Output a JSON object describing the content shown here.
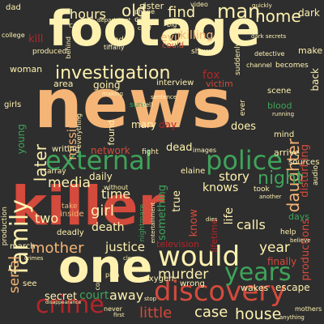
{
  "colors": {
    "background": "#2e2e2e",
    "cream": "#fff2b0",
    "peach": "#f5b577",
    "orange": "#f08a4b",
    "red": "#d44a3c",
    "dark_red": "#b2262a",
    "green": "#3fa35a",
    "light_green": "#8fd28a"
  },
  "words": [
    {
      "text": "news",
      "color": "peach",
      "vertical": false
    },
    {
      "text": "footage",
      "color": "cream",
      "vertical": false
    },
    {
      "text": "killer",
      "color": "red",
      "vertical": false
    },
    {
      "text": "one",
      "color": "cream",
      "vertical": false
    },
    {
      "text": "discovery",
      "color": "red",
      "vertical": false
    },
    {
      "text": "external",
      "color": "green",
      "vertical": false
    },
    {
      "text": "police",
      "color": "green",
      "vertical": false
    },
    {
      "text": "would",
      "color": "cream",
      "vertical": false
    },
    {
      "text": "years",
      "color": "green",
      "vertical": false
    },
    {
      "text": "crime",
      "color": "dark_red",
      "vertical": false
    },
    {
      "text": "investigation",
      "color": "cream",
      "vertical": false
    },
    {
      "text": "family",
      "color": "cream",
      "vertical": true
    },
    {
      "text": "man",
      "color": "cream",
      "vertical": false
    },
    {
      "text": "home",
      "color": "cream",
      "vertical": false
    },
    {
      "text": "old",
      "color": "cream",
      "vertical": false
    },
    {
      "text": "hours",
      "color": "cream",
      "vertical": false
    },
    {
      "text": "find",
      "color": "cream",
      "vertical": false
    },
    {
      "text": "daughter",
      "color": "peach",
      "vertical": true
    },
    {
      "text": "night",
      "color": "green",
      "vertical": false
    },
    {
      "text": "later",
      "color": "cream",
      "vertical": true
    },
    {
      "text": "house",
      "color": "cream",
      "vertical": false
    },
    {
      "text": "case",
      "color": "cream",
      "vertical": false
    },
    {
      "text": "little",
      "color": "red",
      "vertical": false
    },
    {
      "text": "mother",
      "color": "peach",
      "vertical": false
    },
    {
      "text": "murder",
      "color": "cream",
      "vertical": false
    },
    {
      "text": "media",
      "color": "cream",
      "vertical": false
    },
    {
      "text": "time",
      "color": "cream",
      "vertical": false
    },
    {
      "text": "girl",
      "color": "cream",
      "vertical": false
    },
    {
      "text": "year",
      "color": "cream",
      "vertical": false
    },
    {
      "text": "story",
      "color": "cream",
      "vertical": false
    },
    {
      "text": "knows",
      "color": "cream",
      "vertical": false
    },
    {
      "text": "two",
      "color": "cream",
      "vertical": false
    },
    {
      "text": "serial",
      "color": "peach",
      "vertical": true
    },
    {
      "text": "justice",
      "color": "cream",
      "vertical": false
    },
    {
      "text": "away",
      "color": "cream",
      "vertical": false
    },
    {
      "text": "death",
      "color": "cream",
      "vertical": false
    },
    {
      "text": "calls",
      "color": "cream",
      "vertical": false
    },
    {
      "text": "court",
      "color": "green",
      "vertical": false
    },
    {
      "text": "secret",
      "color": "cream",
      "vertical": false
    },
    {
      "text": "fox",
      "color": "dark_red",
      "vertical": false
    },
    {
      "text": "evil",
      "color": "peach",
      "vertical": false
    },
    {
      "text": "killing",
      "color": "peach",
      "vertical": false
    },
    {
      "text": "missing",
      "color": "peach",
      "vertical": true
    },
    {
      "text": "mary",
      "color": "cream",
      "vertical": false
    },
    {
      "text": "day",
      "color": "dark_red",
      "vertical": false
    },
    {
      "text": "does",
      "color": "cream",
      "vertical": false
    },
    {
      "text": "dead",
      "color": "cream",
      "vertical": false
    },
    {
      "text": "network",
      "color": "red",
      "vertical": false
    },
    {
      "text": "daily",
      "color": "cream",
      "vertical": false
    },
    {
      "text": "young",
      "color": "green",
      "vertical": true
    },
    {
      "text": "true",
      "color": "cream",
      "vertical": true
    },
    {
      "text": "something",
      "color": "green",
      "vertical": true
    },
    {
      "text": "know",
      "color": "red",
      "vertical": true
    },
    {
      "text": "life",
      "color": "cream",
      "vertical": true
    },
    {
      "text": "finally",
      "color": "red",
      "vertical": false
    },
    {
      "text": "wakes",
      "color": "cream",
      "vertical": false
    },
    {
      "text": "escape",
      "color": "cream",
      "vertical": false
    },
    {
      "text": "productions",
      "color": "red",
      "vertical": true
    },
    {
      "text": "disturbing",
      "color": "red",
      "vertical": true
    },
    {
      "text": "interview",
      "color": "cream",
      "vertical": false
    },
    {
      "text": "victim",
      "color": "red",
      "vertical": false
    },
    {
      "text": "going",
      "color": "cream",
      "vertical": false
    },
    {
      "text": "area",
      "color": "cream",
      "vertical": false
    },
    {
      "text": "back",
      "color": "cream",
      "vertical": true
    },
    {
      "text": "oxygen",
      "color": "cream",
      "vertical": false
    },
    {
      "text": "wrong",
      "color": "cream",
      "vertical": false
    },
    {
      "text": "deadly",
      "color": "cream",
      "vertical": false
    },
    {
      "text": "television",
      "color": "dark_red",
      "vertical": false
    },
    {
      "text": "dark",
      "color": "cream",
      "vertical": false
    },
    {
      "text": "sister",
      "color": "cream",
      "vertical": false
    },
    {
      "text": "found",
      "color": "cream",
      "vertical": true
    },
    {
      "text": "arrive",
      "color": "cream",
      "vertical": false
    },
    {
      "text": "blood",
      "color": "green",
      "vertical": false
    },
    {
      "text": "elaine",
      "color": "cream",
      "vertical": false
    },
    {
      "text": "make",
      "color": "cream",
      "vertical": false
    },
    {
      "text": "writing",
      "color": "cream",
      "vertical": false
    },
    {
      "text": "fight",
      "color": "cream",
      "vertical": false
    },
    {
      "text": "took",
      "color": "cream",
      "vertical": false
    },
    {
      "text": "inside",
      "color": "peach",
      "vertical": false
    },
    {
      "text": "take",
      "color": "peach",
      "vertical": false
    },
    {
      "text": "scene",
      "color": "cream",
      "vertical": false
    },
    {
      "text": "kill",
      "color": "dark_red",
      "vertical": false
    },
    {
      "text": "woman",
      "color": "cream",
      "vertical": false
    },
    {
      "text": "end",
      "color": "cream",
      "vertical": false
    },
    {
      "text": "call",
      "color": "cream",
      "vertical": false
    },
    {
      "text": "car",
      "color": "cream",
      "vertical": false
    },
    {
      "text": "phone",
      "color": "cream",
      "vertical": false
    },
    {
      "text": "mind",
      "color": "cream",
      "vertical": false
    },
    {
      "text": "video",
      "color": "cream",
      "vertical": false
    },
    {
      "text": "sources",
      "color": "cream",
      "vertical": false
    },
    {
      "text": "becomes",
      "color": "cream",
      "vertical": false
    },
    {
      "text": "cops",
      "color": "cream",
      "vertical": true
    },
    {
      "text": "tiffany",
      "color": "cream",
      "vertical": false
    },
    {
      "text": "produced",
      "color": "cream",
      "vertical": false
    },
    {
      "text": "nightmare",
      "color": "green",
      "vertical": true
    },
    {
      "text": "sentence",
      "color": "cream",
      "vertical": false
    },
    {
      "text": "detective",
      "color": "cream",
      "vertical": false
    },
    {
      "text": "production",
      "color": "cream",
      "vertical": true
    },
    {
      "text": "array",
      "color": "cream",
      "vertical": false
    },
    {
      "text": "march",
      "color": "cream",
      "vertical": false
    },
    {
      "text": "suddenly",
      "color": "cream",
      "vertical": true
    },
    {
      "text": "show",
      "color": "cream",
      "vertical": false
    },
    {
      "text": "could",
      "color": "red",
      "vertical": false
    },
    {
      "text": "lifetime",
      "color": "dark_red",
      "vertical": true
    },
    {
      "text": "sure",
      "color": "green",
      "vertical": false
    },
    {
      "text": "without",
      "color": "cream",
      "vertical": false
    },
    {
      "text": "audio",
      "color": "cream",
      "vertical": true
    },
    {
      "text": "help",
      "color": "cream",
      "vertical": false
    },
    {
      "text": "days",
      "color": "green",
      "vertical": false
    },
    {
      "text": "anything",
      "color": "cream",
      "vertical": false
    },
    {
      "text": "mothers",
      "color": "cream",
      "vertical": false
    },
    {
      "text": "see",
      "color": "cream",
      "vertical": false
    },
    {
      "text": "dad",
      "color": "cream",
      "vertical": false
    },
    {
      "text": "college",
      "color": "cream",
      "vertical": false
    },
    {
      "text": "channel",
      "color": "cream",
      "vertical": false
    },
    {
      "text": "quickly",
      "color": "cream",
      "vertical": false
    },
    {
      "text": "department",
      "color": "cream",
      "vertical": false
    },
    {
      "text": "behind",
      "color": "cream",
      "vertical": true
    },
    {
      "text": "making",
      "color": "cream",
      "vertical": false
    },
    {
      "text": "plan",
      "color": "cream",
      "vertical": false
    },
    {
      "text": "ever",
      "color": "cream",
      "vertical": true
    },
    {
      "text": "never",
      "color": "cream",
      "vertical": false
    },
    {
      "text": "first",
      "color": "cream",
      "vertical": false
    },
    {
      "text": "images",
      "color": "cream",
      "vertical": false
    },
    {
      "text": "entertainment",
      "color": "cream",
      "vertical": true
    },
    {
      "text": "believe",
      "color": "cream",
      "vertical": false
    },
    {
      "text": "another",
      "color": "cream",
      "vertical": false
    },
    {
      "text": "crimes",
      "color": "cream",
      "vertical": false
    },
    {
      "text": "girls",
      "color": "cream",
      "vertical": false
    },
    {
      "text": "everything",
      "color": "cream",
      "vertical": true
    },
    {
      "text": "tell",
      "color": "cream",
      "vertical": false
    },
    {
      "text": "chief",
      "color": "cream",
      "vertical": false
    },
    {
      "text": "running",
      "color": "cream",
      "vertical": false
    },
    {
      "text": "clear",
      "color": "cream",
      "vertical": false
    },
    {
      "text": "big",
      "color": "cream",
      "vertical": false
    },
    {
      "text": "dies",
      "color": "cream",
      "vertical": false
    },
    {
      "text": "dark secrets",
      "color": "cream",
      "vertical": false
    },
    {
      "text": "disappearance",
      "color": "cream",
      "vertical": false
    },
    {
      "text": "stop",
      "color": "cream",
      "vertical": false
    }
  ]
}
